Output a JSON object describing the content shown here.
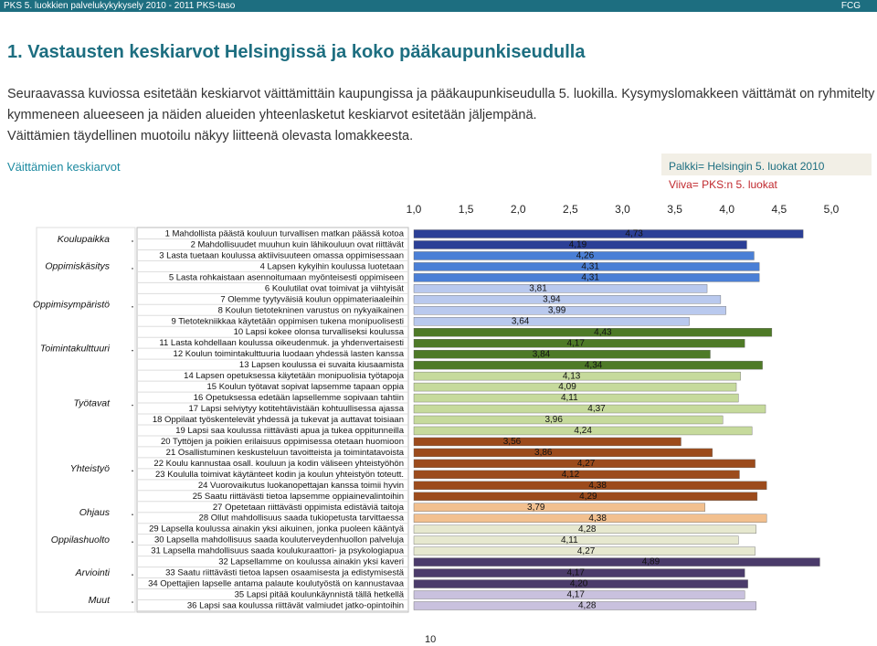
{
  "header": {
    "left": "PKS 5. luokkien palvelukykykysely 2010 - 2011 PKS-taso",
    "right": "FCG"
  },
  "title": "1. Vastausten keskiarvot Helsingissä ja koko pääkaupunkiseudulla",
  "paragraph": [
    "Seuraavassa kuviossa esitetään keskiarvot väittämittäin kaupungissa ja pääkaupunkiseudulla 5. luokilla. Kysymyslomakkeen väittämät on ryhmitelty",
    "kymmeneen alueeseen ja näiden alueiden yhteenlasketut keskiarvot esitetään jäljempänä.",
    "Väittämien täydellinen muotoilu näkyy liitteenä olevasta lomakkeesta."
  ],
  "page_number": "10",
  "chart_data": {
    "type": "bar",
    "orientation": "horizontal",
    "title": "Väittämien keskiarvot",
    "legend": [
      "Palkki= Helsingin 5. luokat 2010",
      "Viiva= PKS:n 5. luokat"
    ],
    "xlim": [
      1,
      5
    ],
    "xticks": [
      {
        "value": 1,
        "label": "1,0"
      },
      {
        "value": 1.5,
        "label": "1,5"
      },
      {
        "value": 2,
        "label": "2,0"
      },
      {
        "value": 2.5,
        "label": "2,5"
      },
      {
        "value": 3,
        "label": "3,0"
      },
      {
        "value": 3.5,
        "label": "3,5"
      },
      {
        "value": 4,
        "label": "4,0"
      },
      {
        "value": 4.5,
        "label": "4,5"
      },
      {
        "value": 5,
        "label": "5,0"
      }
    ],
    "series": [
      {
        "name": "Koulupaikka",
        "color": "#2b3f96",
        "categories": [
          "1 Mahdollista päästä kouluun turvallisen matkan päässä kotoa",
          "2 Mahdollisuudet muuhun kuin lähikouluun ovat riittävät"
        ],
        "values": [
          4.73,
          4.19
        ],
        "value_labels": [
          "4,73",
          "4,19"
        ]
      },
      {
        "name": "Oppimiskäsitys",
        "color": "#4a7fd6",
        "categories": [
          "3 Lasta tuetaan koulussa aktiivisuuteen omassa oppimisessaan",
          "4 Lapsen kykyihin koulussa luotetaan",
          "5 Lasta rohkaistaan asennoitumaan myönteisesti oppimiseen"
        ],
        "values": [
          4.26,
          4.31,
          4.31
        ],
        "value_labels": [
          "4,26",
          "4,31",
          "4,31"
        ]
      },
      {
        "name": "Oppimisympäristö",
        "color": "#b9c9ee",
        "categories": [
          "6 Koulutilat ovat toimivat ja viihtyisät",
          "7 Olemme tyytyväisiä koulun oppimateriaaleihin",
          "8 Koulun tietotekninen varustus on nykyaikainen",
          "9 Tietotekniikkaa käytetään oppimisen tukena monipuolisesti"
        ],
        "values": [
          3.81,
          3.94,
          3.99,
          3.64
        ],
        "value_labels": [
          "3,81",
          "3,94",
          "3,99",
          "3,64"
        ]
      },
      {
        "name": "Toimintakulttuuri",
        "color": "#4e7a27",
        "categories": [
          "10 Lapsi kokee olonsa turvalliseksi koulussa",
          "11 Lasta kohdellaan koulussa oikeudenmuk. ja yhdenvertaisesti",
          "12 Koulun toimintakulttuuria luodaan yhdessä lasten kanssa",
          "13 Lapsen koulussa ei suvaita kiusaamista"
        ],
        "values": [
          4.43,
          4.17,
          3.84,
          4.34
        ],
        "value_labels": [
          "4,43",
          "4,17",
          "3,84",
          "4,34"
        ]
      },
      {
        "name": "Työtavat",
        "color": "#c6da9c",
        "categories": [
          "14 Lapsen opetuksessa käytetään monipuolisia työtapoja",
          "15 Koulun työtavat sopivat lapsemme tapaan oppia",
          "16 Opetuksessa edetään lapsellemme sopivaan tahtiin",
          "17 Lapsi selviytyy kotitehtävistään kohtuullisessa ajassa",
          "18 Oppilaat työskentelevät yhdessä ja tukevat ja auttavat toisiaan",
          "19 Lapsi saa koulussa riittävästi apua ja tukea oppitunneilla"
        ],
        "values": [
          4.13,
          4.09,
          4.11,
          4.37,
          3.96,
          4.24
        ],
        "value_labels": [
          "4,13",
          "4,09",
          "4,11",
          "4,37",
          "3,96",
          "4,24"
        ]
      },
      {
        "name": "Yhteistyö",
        "color": "#9c4b1c",
        "categories": [
          "20 Tyttöjen ja poikien erilaisuus oppimisessa otetaan huomioon",
          "21 Osallistuminen keskusteluun tavoitteista ja toimintatavoista",
          "22 Koulu kannustaa osall. kouluun ja kodin väliseen yhteistyöhön",
          "23 Koululla toimivat käytänteet kodin ja koulun yhteistyön toteutt.",
          "24 Vuorovaikutus luokanopettajan kanssa toimii hyvin",
          "25 Saatu riittävästi tietoa lapsemme oppiainevalintoihin"
        ],
        "values": [
          3.56,
          3.86,
          4.27,
          4.12,
          4.38,
          4.29
        ],
        "value_labels": [
          "3,56",
          "3,86",
          "4,27",
          "4,12",
          "4,38",
          "4,29"
        ]
      },
      {
        "name": "Ohjaus",
        "color": "#f2c08f",
        "categories": [
          "27 Opetetaan riittävästi oppimista edistäviä taitoja",
          "28 Ollut mahdollisuus saada tukiopetusta tarvittaessa"
        ],
        "values": [
          3.79,
          4.38
        ],
        "value_labels": [
          "3,79",
          "4,38"
        ]
      },
      {
        "name": "Oppilashuolto",
        "color": "#e6e8cf",
        "categories": [
          "29 Lapsella koulussa ainakin yksi aikuinen, jonka puoleen kääntyä",
          "30 Lapsella mahdollisuus saada kouluterveydenhuollon palveluja",
          "31 Lapsella mahdollisuus saada koulukuraattori- ja psykologiapua"
        ],
        "values": [
          4.28,
          4.11,
          4.27
        ],
        "value_labels": [
          "4,28",
          "4,11",
          "4,27"
        ]
      },
      {
        "name": "Arviointi",
        "color": "#4b3b6b",
        "categories": [
          "32 Lapsellamme on koulussa ainakin yksi kaveri",
          "33 Saatu riittävästi tietoa lapsen osaamisesta ja edistymisestä",
          "34 Opettajien lapselle antama palaute koulutyöstä on kannustavaa"
        ],
        "values": [
          4.89,
          4.17,
          4.2
        ],
        "value_labels": [
          "4,89",
          "4,17",
          "4,20"
        ]
      },
      {
        "name": "Muut",
        "color": "#c9c1de",
        "categories": [
          "35 Lapsi pitää koulunkäynnistä tällä hetkellä",
          "36 Lapsi saa koulussa riittävät valmiudet jatko-opintoihin"
        ],
        "values": [
          4.17,
          4.28
        ],
        "value_labels": [
          "4,17",
          "4,28"
        ]
      }
    ]
  }
}
